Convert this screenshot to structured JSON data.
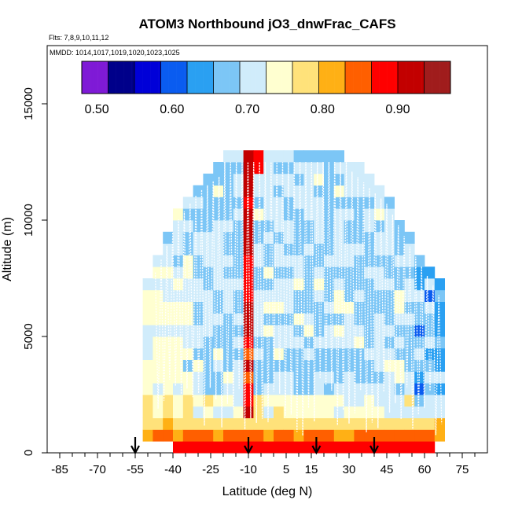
{
  "chart_data": {
    "type": "heatmap",
    "title": "ATOM3 Northbound jO3_dnwFrac_CAFS",
    "flights_label": "Flts: 7,8,9,10,11,12",
    "mmdd_label": "MMDD: 1014,1017,1019,1020,1023,1025",
    "xlabel": "Latitude (deg N)",
    "ylabel": "Altitude (m)",
    "xlim": [
      -90,
      85
    ],
    "ylim": [
      0,
      17500
    ],
    "x_ticks": [
      -85,
      -70,
      -55,
      -40,
      -25,
      -10,
      5,
      15,
      30,
      45,
      60,
      75
    ],
    "y_ticks": [
      0,
      5000,
      10000,
      15000
    ],
    "colorbar": {
      "range": [
        0.48,
        0.97
      ],
      "ticks": [
        0.5,
        0.6,
        0.7,
        0.8,
        0.9
      ],
      "tick_labels": [
        "0.50",
        "0.60",
        "0.70",
        "0.80",
        "0.90"
      ],
      "colors": [
        "#7f1ad6",
        "#00008a",
        "#0000d8",
        "#0a5cf0",
        "#2aa0f2",
        "#7cc6f6",
        "#d0ecfb",
        "#ffffd0",
        "#ffe27a",
        "#ffb015",
        "#ff5f00",
        "#ff0000",
        "#c20000",
        "#a01c1c"
      ]
    },
    "takeoff_markers_lat": [
      -55,
      -10,
      17,
      40
    ],
    "cell_width_deg": 4,
    "cell_height_m": 500,
    "grid": false,
    "summary": "Values ~0.62-0.72 through most of the troposphere, 0.80-0.90 near surface (below 1 km), band of 0.85-0.95 at about -9 deg N from 2 to 13 km, minimum ~0.55 near 60-65 deg N."
  }
}
